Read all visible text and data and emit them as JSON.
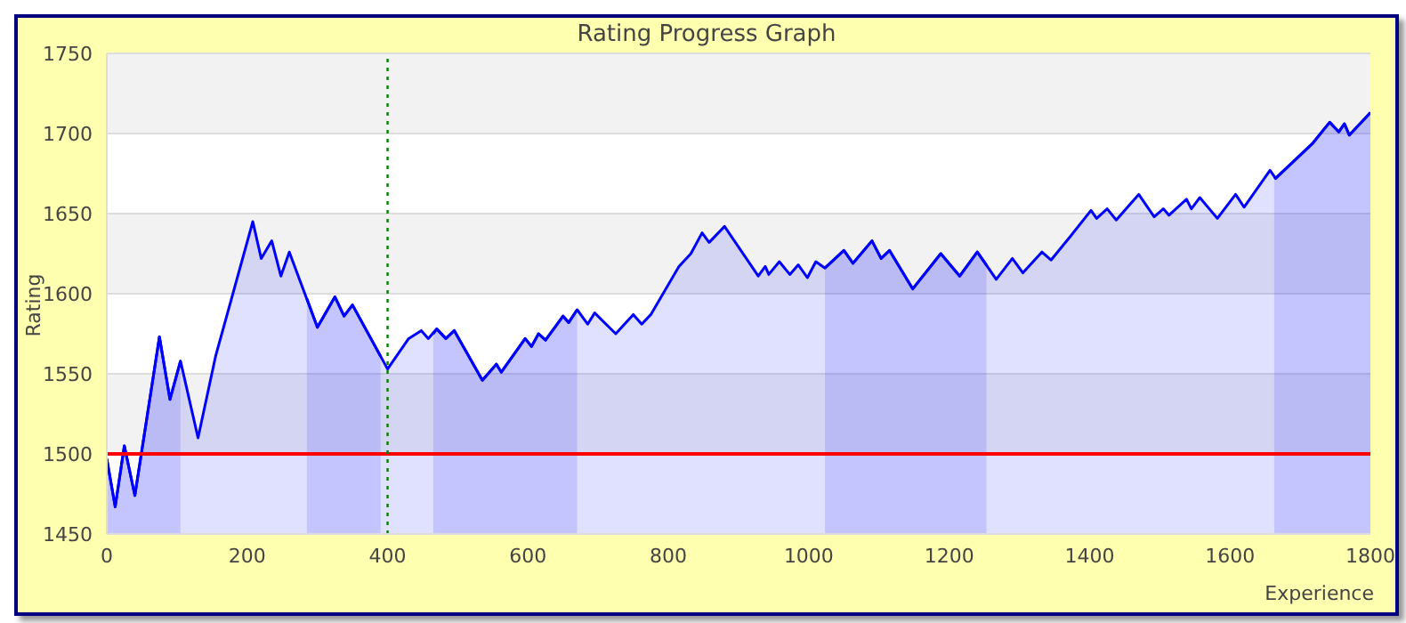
{
  "chart_data": {
    "type": "area",
    "title": "Rating Progress Graph",
    "xlabel": "Experience",
    "ylabel": "Rating",
    "xlim": [
      0,
      1800
    ],
    "xticks": [
      0,
      200,
      400,
      600,
      800,
      1000,
      1200,
      1400,
      1600,
      1800
    ],
    "ylim": [
      1450,
      1750
    ],
    "yticks": [
      1450,
      1500,
      1550,
      1600,
      1650,
      1700,
      1750
    ],
    "grid": "y",
    "legend": false,
    "marker": "none",
    "series": [
      {
        "color": "#0000ff",
        "x": [
          0,
          12,
          25,
          40,
          75,
          90,
          105
        ],
        "values": [
          1497,
          1467,
          1505,
          1474,
          1573,
          1534,
          1558
        ]
      },
      {
        "color": "#0000ff",
        "x": [
          285,
          300,
          325,
          338,
          350,
          390
        ],
        "values": [
          1597,
          1579,
          1598,
          1586,
          1593,
          1561
        ]
      },
      {
        "color": "#0000ff",
        "x": [
          465,
          470,
          483,
          495,
          535,
          555,
          562,
          596,
          605,
          615,
          625,
          650,
          658,
          670
        ],
        "values": [
          1575,
          1578,
          1572,
          1577,
          1546,
          1556,
          1551,
          1572,
          1567,
          1575,
          1571,
          1586,
          1582,
          1590
        ]
      },
      {
        "color": "#0000ff",
        "x": [
          1023,
          1050,
          1063,
          1090,
          1103,
          1115,
          1148,
          1188,
          1215,
          1240,
          1253
        ],
        "values": [
          1616,
          1627,
          1619,
          1633,
          1622,
          1627,
          1603,
          1625,
          1611,
          1626,
          1618
        ]
      },
      {
        "color": "#0000ff",
        "x": [
          1663,
          1665,
          1718,
          1742,
          1755,
          1763,
          1770,
          1800
        ],
        "values": [
          1673,
          1672,
          1694,
          1707,
          1701,
          1706,
          1699,
          1713
        ]
      },
      {
        "color": "#0000ff",
        "x": [
          0,
          12,
          25,
          40,
          75,
          90,
          105,
          130,
          155,
          208,
          220,
          235,
          248,
          260,
          300,
          325,
          338,
          350,
          400,
          430,
          448,
          458,
          470,
          483,
          495,
          535,
          555,
          562,
          596,
          605,
          615,
          625,
          650,
          658,
          670,
          685,
          695,
          725,
          750,
          762,
          775,
          815,
          832,
          848,
          858,
          880,
          928,
          938,
          943,
          958,
          973,
          985,
          998,
          1010,
          1023,
          1050,
          1063,
          1090,
          1103,
          1115,
          1148,
          1188,
          1215,
          1240,
          1267,
          1290,
          1305,
          1332,
          1345,
          1373,
          1402,
          1410,
          1425,
          1438,
          1470,
          1492,
          1505,
          1513,
          1538,
          1545,
          1557,
          1582,
          1608,
          1620,
          1657,
          1665,
          1718,
          1742,
          1755,
          1763,
          1770,
          1800
        ],
        "values": [
          1497,
          1467,
          1505,
          1474,
          1573,
          1534,
          1558,
          1510,
          1561,
          1645,
          1622,
          1633,
          1611,
          1626,
          1579,
          1598,
          1586,
          1593,
          1553,
          1572,
          1577,
          1572,
          1578,
          1572,
          1577,
          1546,
          1556,
          1551,
          1572,
          1567,
          1575,
          1571,
          1586,
          1582,
          1590,
          1581,
          1588,
          1575,
          1587,
          1581,
          1587,
          1617,
          1625,
          1638,
          1632,
          1642,
          1611,
          1617,
          1612,
          1620,
          1612,
          1618,
          1610,
          1620,
          1616,
          1627,
          1619,
          1633,
          1622,
          1627,
          1603,
          1625,
          1611,
          1626,
          1609,
          1622,
          1613,
          1626,
          1621,
          1636,
          1652,
          1647,
          1653,
          1646,
          1662,
          1648,
          1653,
          1649,
          1659,
          1653,
          1660,
          1647,
          1662,
          1654,
          1677,
          1672,
          1694,
          1707,
          1701,
          1706,
          1699,
          1713
        ]
      }
    ],
    "ref_lines": [
      {
        "axis": "y",
        "value": 1500,
        "color": "#ff0000",
        "line_style": "solid"
      },
      {
        "axis": "x",
        "value": 400,
        "color": "#008000",
        "line_style": "dotted"
      }
    ]
  }
}
